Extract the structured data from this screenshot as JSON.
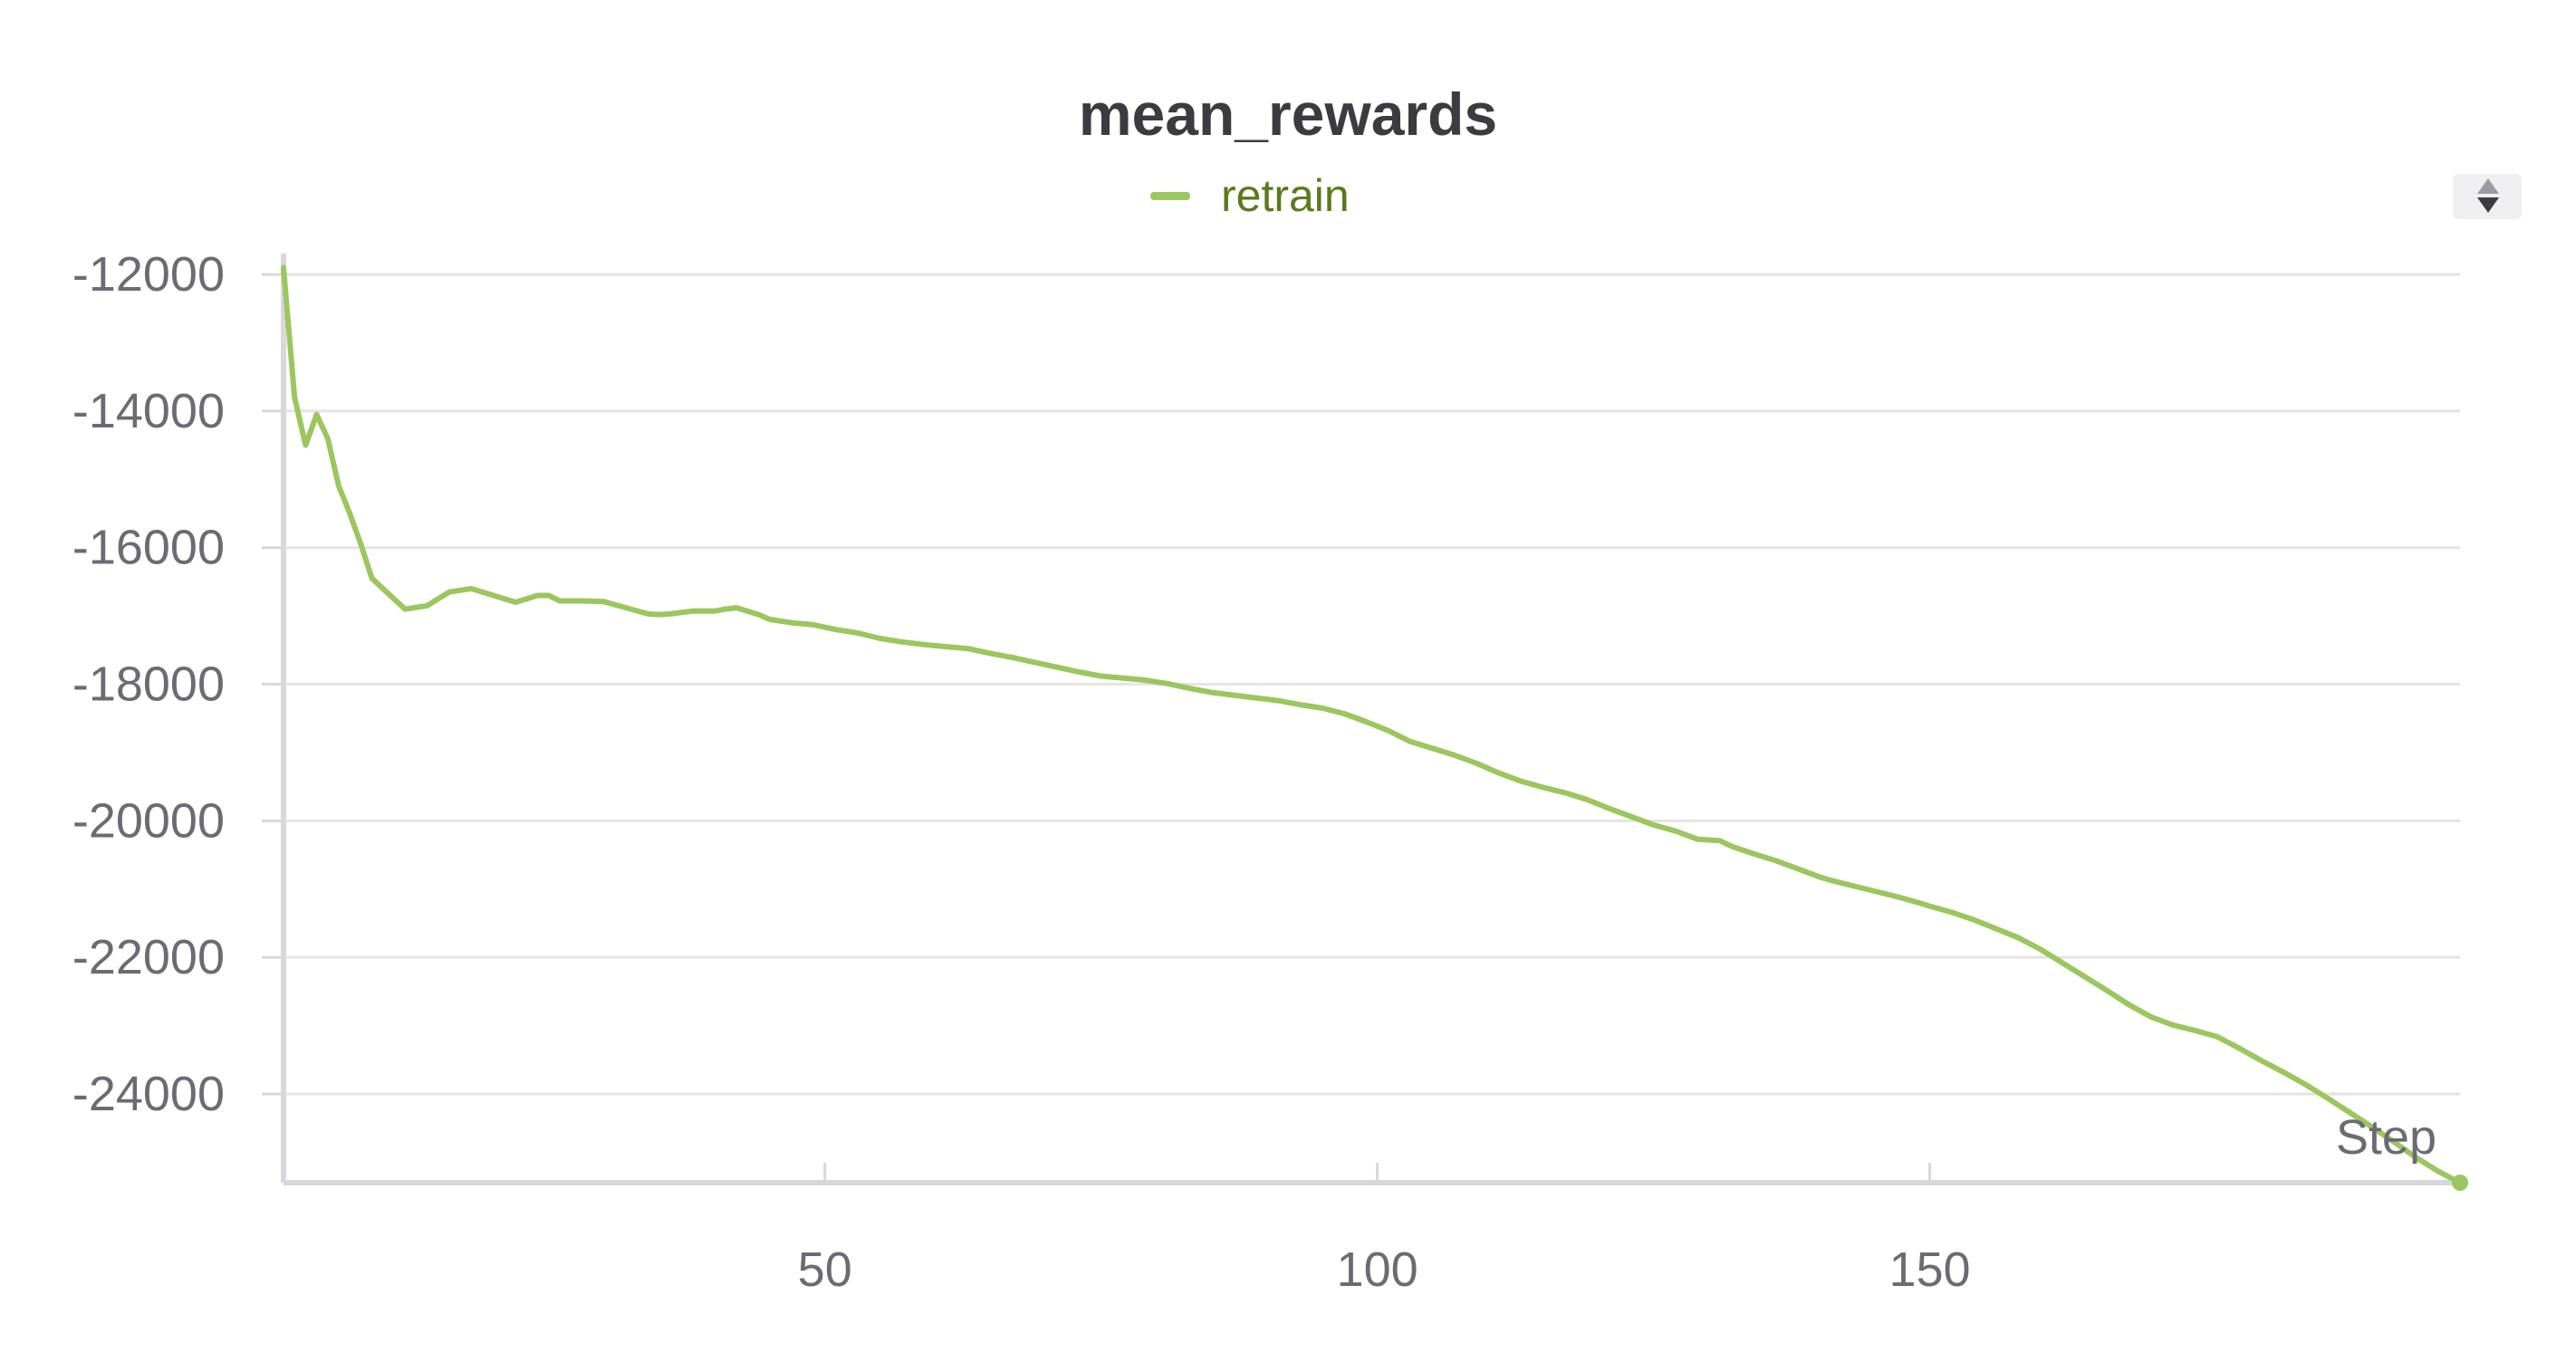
{
  "chart_data": {
    "type": "line",
    "title": "mean_rewards",
    "xlabel": "Step",
    "ylabel": "",
    "x_ticks": [
      50,
      100,
      150
    ],
    "y_ticks": [
      -12000,
      -14000,
      -16000,
      -18000,
      -20000,
      -22000,
      -24000
    ],
    "xlim": [
      1,
      198
    ],
    "ylim": [
      -25300,
      -11800
    ],
    "grid": true,
    "legend_position": "top-center",
    "series": [
      {
        "name": "retrain",
        "color": "#9cc65e",
        "x": [
          1,
          2,
          3,
          4,
          5,
          6,
          7,
          8,
          9,
          10,
          12,
          14,
          16,
          18,
          20,
          22,
          24,
          25,
          26,
          28,
          30,
          32,
          34,
          35,
          36,
          38,
          40,
          41,
          42,
          44,
          45,
          47,
          49,
          51,
          53,
          55,
          57,
          59,
          61,
          63,
          65,
          67,
          69,
          71,
          73,
          75,
          77,
          79,
          81,
          83,
          85,
          87,
          89,
          91,
          93,
          95,
          97,
          99,
          101,
          103,
          105,
          107,
          109,
          111,
          113,
          115,
          117,
          119,
          121,
          123,
          125,
          127,
          129,
          131,
          132,
          134,
          136,
          138,
          140,
          141,
          143,
          145,
          147,
          149,
          150,
          152,
          154,
          156,
          158,
          160,
          162,
          164,
          166,
          168,
          170,
          172,
          174,
          176,
          178,
          180,
          182,
          184,
          186,
          188,
          190,
          192,
          194,
          196,
          198
        ],
        "values": [
          -11900,
          -13800,
          -14500,
          -14050,
          -14400,
          -15100,
          -15500,
          -15950,
          -16450,
          -16600,
          -16900,
          -16850,
          -16650,
          -16600,
          -16700,
          -16800,
          -16700,
          -16700,
          -16780,
          -16780,
          -16790,
          -16880,
          -16970,
          -16980,
          -16970,
          -16930,
          -16930,
          -16900,
          -16880,
          -16980,
          -17050,
          -17100,
          -17130,
          -17200,
          -17250,
          -17330,
          -17380,
          -17420,
          -17450,
          -17480,
          -17550,
          -17610,
          -17680,
          -17750,
          -17820,
          -17880,
          -17910,
          -17940,
          -17990,
          -18060,
          -18120,
          -18160,
          -18200,
          -18240,
          -18300,
          -18350,
          -18430,
          -18550,
          -18680,
          -18840,
          -18940,
          -19040,
          -19160,
          -19300,
          -19420,
          -19510,
          -19590,
          -19690,
          -19820,
          -19940,
          -20060,
          -20150,
          -20270,
          -20290,
          -20370,
          -20480,
          -20580,
          -20700,
          -20820,
          -20870,
          -20950,
          -21030,
          -21110,
          -21200,
          -21250,
          -21340,
          -21450,
          -21580,
          -21710,
          -21880,
          -22080,
          -22280,
          -22480,
          -22690,
          -22870,
          -22990,
          -23070,
          -23160,
          -23330,
          -23510,
          -23680,
          -23860,
          -24060,
          -24270,
          -24480,
          -24700,
          -24930,
          -25130,
          -25300
        ]
      }
    ]
  }
}
